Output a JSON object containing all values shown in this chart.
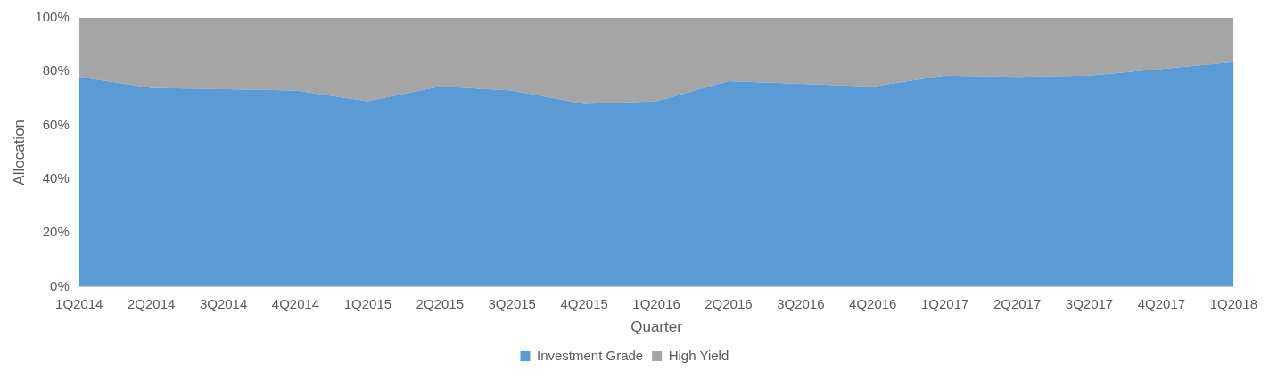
{
  "chart_data": {
    "type": "area",
    "stacked": true,
    "xlabel": "Quarter",
    "ylabel": "Allocation",
    "categories": [
      "1Q2014",
      "2Q2014",
      "3Q2014",
      "4Q2014",
      "1Q2015",
      "2Q2015",
      "3Q2015",
      "4Q2015",
      "1Q2016",
      "2Q2016",
      "3Q2016",
      "4Q2016",
      "1Q2017",
      "2Q2017",
      "3Q2017",
      "4Q2017",
      "1Q2018"
    ],
    "series": [
      {
        "name": "Investment Grade",
        "color": "#5b9bd5",
        "values": [
          78,
          74,
          73.5,
          73,
          69,
          74.5,
          73,
          68,
          69,
          76.5,
          75.5,
          74.5,
          78.5,
          78,
          78.5,
          81,
          83.5
        ]
      },
      {
        "name": "High Yield",
        "color": "#a5a5a5",
        "values": [
          22,
          26,
          26.5,
          27,
          31,
          25.5,
          27,
          32,
          31,
          23.5,
          24.5,
          25.5,
          21.5,
          22,
          21.5,
          19,
          16.5
        ]
      }
    ],
    "ylim": [
      0,
      100
    ],
    "yticks": [
      {
        "value": 0,
        "label": "0%"
      },
      {
        "value": 20,
        "label": "20%"
      },
      {
        "value": 40,
        "label": "40%"
      },
      {
        "value": 60,
        "label": "60%"
      },
      {
        "value": 80,
        "label": "80%"
      },
      {
        "value": 100,
        "label": "100%"
      }
    ],
    "grid": false,
    "legend": "bottom"
  }
}
